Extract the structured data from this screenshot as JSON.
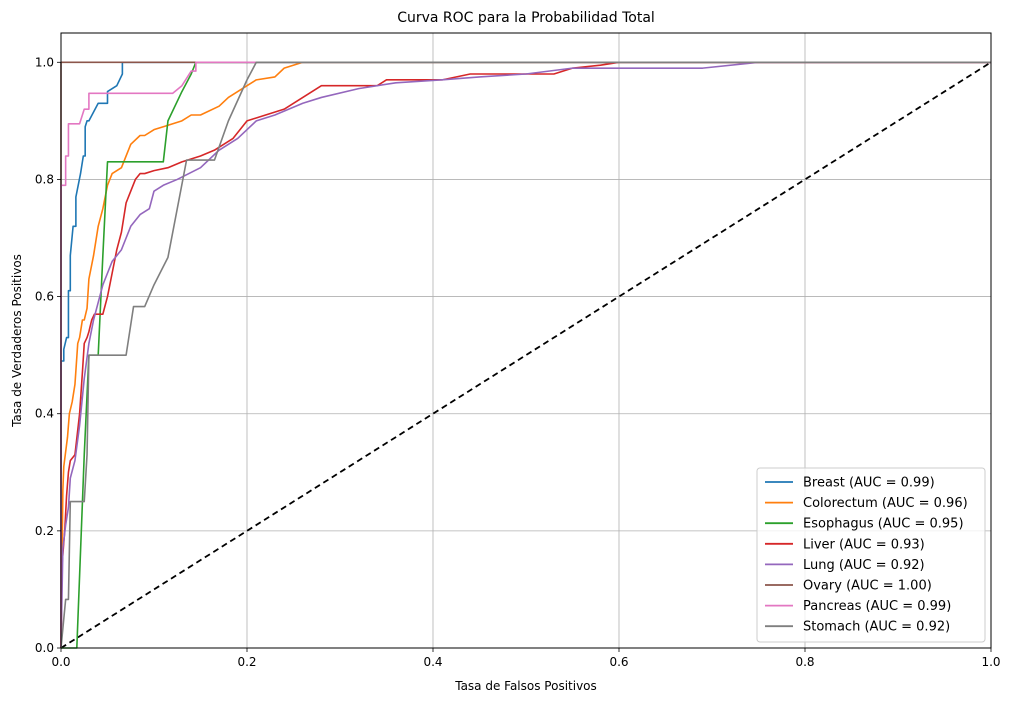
{
  "chart_data": {
    "type": "line",
    "title": "Curva ROC para la Probabilidad Total",
    "xlabel": "Tasa de Falsos Positivos",
    "ylabel": "Tasa de Verdaderos Positivos",
    "xlim": [
      0,
      1
    ],
    "ylim": [
      0,
      1.05
    ],
    "xticks": [
      "0.0",
      "0.2",
      "0.4",
      "0.6",
      "0.8",
      "1.0"
    ],
    "yticks": [
      "0.0",
      "0.2",
      "0.4",
      "0.6",
      "0.8",
      "1.0"
    ],
    "grid": true,
    "legend_position": "lower-right",
    "diagonal": {
      "x": [
        0,
        1
      ],
      "y": [
        0,
        1
      ],
      "color": "#000000",
      "style": "dashed"
    },
    "series": [
      {
        "name": "Breast (AUC = 0.99)",
        "color": "#1f77b4",
        "x": [
          0,
          0,
          0.003,
          0.003,
          0.006,
          0.008,
          0.008,
          0.01,
          0.01,
          0.013,
          0.016,
          0.016,
          0.021,
          0.024,
          0.026,
          0.026,
          0.028,
          0.03,
          0.03,
          0.04,
          0.05,
          0.05,
          0.06,
          0.06,
          0.066,
          0.066,
          1
        ],
        "y": [
          0,
          0.49,
          0.49,
          0.51,
          0.53,
          0.53,
          0.61,
          0.61,
          0.67,
          0.72,
          0.72,
          0.77,
          0.81,
          0.84,
          0.84,
          0.89,
          0.9,
          0.9,
          0.9,
          0.93,
          0.93,
          0.95,
          0.96,
          0.96,
          0.98,
          1.0,
          1.0
        ]
      },
      {
        "name": "Colorectum (AUC = 0.96)",
        "color": "#ff7f0e",
        "x": [
          0,
          0.002,
          0.003,
          0.007,
          0.009,
          0.012,
          0.015,
          0.018,
          0.02,
          0.023,
          0.025,
          0.028,
          0.03,
          0.035,
          0.04,
          0.045,
          0.05,
          0.055,
          0.065,
          0.075,
          0.085,
          0.09,
          0.1,
          0.11,
          0.13,
          0.14,
          0.15,
          0.17,
          0.18,
          0.19,
          0.2,
          0.21,
          0.23,
          0.24,
          0.26,
          1
        ],
        "y": [
          0,
          0.27,
          0.31,
          0.36,
          0.4,
          0.42,
          0.45,
          0.52,
          0.53,
          0.56,
          0.56,
          0.58,
          0.63,
          0.67,
          0.72,
          0.75,
          0.79,
          0.81,
          0.82,
          0.86,
          0.875,
          0.875,
          0.885,
          0.89,
          0.9,
          0.91,
          0.91,
          0.925,
          0.94,
          0.95,
          0.96,
          0.97,
          0.975,
          0.99,
          1.0,
          1.0
        ]
      },
      {
        "name": "Esophagus (AUC = 0.95)",
        "color": "#2ca02c",
        "x": [
          0,
          0.017,
          0.025,
          0.03,
          0.04,
          0.045,
          0.05,
          0.055,
          0.08,
          0.11,
          0.115,
          0.13,
          0.14,
          0.145,
          1
        ],
        "y": [
          0,
          0,
          0.33,
          0.5,
          0.5,
          0.67,
          0.83,
          0.83,
          0.83,
          0.83,
          0.9,
          0.95,
          0.98,
          1.0,
          1.0
        ]
      },
      {
        "name": "Liver (AUC = 0.93)",
        "color": "#d62728",
        "x": [
          0,
          0.001,
          0.004,
          0.006,
          0.008,
          0.01,
          0.015,
          0.02,
          0.023,
          0.025,
          0.028,
          0.03,
          0.033,
          0.036,
          0.038,
          0.04,
          0.045,
          0.05,
          0.055,
          0.06,
          0.065,
          0.07,
          0.08,
          0.085,
          0.09,
          0.1,
          0.115,
          0.13,
          0.15,
          0.165,
          0.175,
          0.185,
          0.2,
          0.22,
          0.24,
          0.26,
          0.28,
          0.3,
          0.34,
          0.35,
          0.41,
          0.44,
          0.48,
          0.53,
          0.55,
          0.58,
          0.6,
          1
        ],
        "y": [
          0,
          0.14,
          0.2,
          0.26,
          0.3,
          0.32,
          0.33,
          0.4,
          0.47,
          0.52,
          0.53,
          0.54,
          0.56,
          0.57,
          0.57,
          0.57,
          0.57,
          0.6,
          0.64,
          0.68,
          0.71,
          0.76,
          0.8,
          0.81,
          0.81,
          0.815,
          0.82,
          0.83,
          0.84,
          0.85,
          0.86,
          0.87,
          0.9,
          0.91,
          0.92,
          0.94,
          0.96,
          0.96,
          0.96,
          0.97,
          0.97,
          0.98,
          0.98,
          0.98,
          0.99,
          0.995,
          1.0,
          1.0
        ]
      },
      {
        "name": "Lung (AUC = 0.92)",
        "color": "#9467bd",
        "x": [
          0,
          0.002,
          0.005,
          0.008,
          0.01,
          0.015,
          0.02,
          0.025,
          0.03,
          0.035,
          0.04,
          0.045,
          0.05,
          0.055,
          0.06,
          0.065,
          0.07,
          0.075,
          0.085,
          0.095,
          0.1,
          0.11,
          0.125,
          0.15,
          0.17,
          0.19,
          0.21,
          0.23,
          0.26,
          0.28,
          0.32,
          0.36,
          0.41,
          0.45,
          0.5,
          0.55,
          0.6,
          0.69,
          0.75,
          0.8,
          1
        ],
        "y": [
          0,
          0.17,
          0.21,
          0.24,
          0.29,
          0.32,
          0.38,
          0.46,
          0.52,
          0.56,
          0.59,
          0.62,
          0.64,
          0.66,
          0.67,
          0.68,
          0.7,
          0.72,
          0.74,
          0.75,
          0.78,
          0.79,
          0.8,
          0.82,
          0.85,
          0.87,
          0.9,
          0.91,
          0.93,
          0.94,
          0.955,
          0.965,
          0.97,
          0.975,
          0.98,
          0.99,
          0.99,
          0.99,
          1.0,
          1.0,
          1.0
        ]
      },
      {
        "name": "Ovary (AUC = 1.00)",
        "color": "#8c564b",
        "x": [
          0,
          0,
          1
        ],
        "y": [
          0,
          1.0,
          1.0
        ]
      },
      {
        "name": "Pancreas (AUC = 0.99)",
        "color": "#e377c2",
        "x": [
          0,
          0,
          0.005,
          0.005,
          0.008,
          0.008,
          0.02,
          0.02,
          0.025,
          0.03,
          0.03,
          0.04,
          0.12,
          0.13,
          0.14,
          0.145,
          0.145,
          1
        ],
        "y": [
          0,
          0.79,
          0.79,
          0.84,
          0.84,
          0.895,
          0.895,
          0.895,
          0.92,
          0.92,
          0.947,
          0.947,
          0.947,
          0.96,
          0.985,
          0.985,
          1.0,
          1.0
        ]
      },
      {
        "name": "Stomach (AUC = 0.92)",
        "color": "#7f7f7f",
        "x": [
          0,
          0.005,
          0.008,
          0.01,
          0.012,
          0.02,
          0.025,
          0.028,
          0.03,
          0.04,
          0.07,
          0.078,
          0.09,
          0.1,
          0.115,
          0.135,
          0.16,
          0.165,
          0.18,
          0.2,
          0.21,
          1
        ],
        "y": [
          0,
          0.083,
          0.083,
          0.25,
          0.25,
          0.25,
          0.25,
          0.33,
          0.5,
          0.5,
          0.5,
          0.583,
          0.583,
          0.62,
          0.667,
          0.833,
          0.833,
          0.833,
          0.9,
          0.97,
          1.0,
          1.0
        ]
      }
    ]
  }
}
